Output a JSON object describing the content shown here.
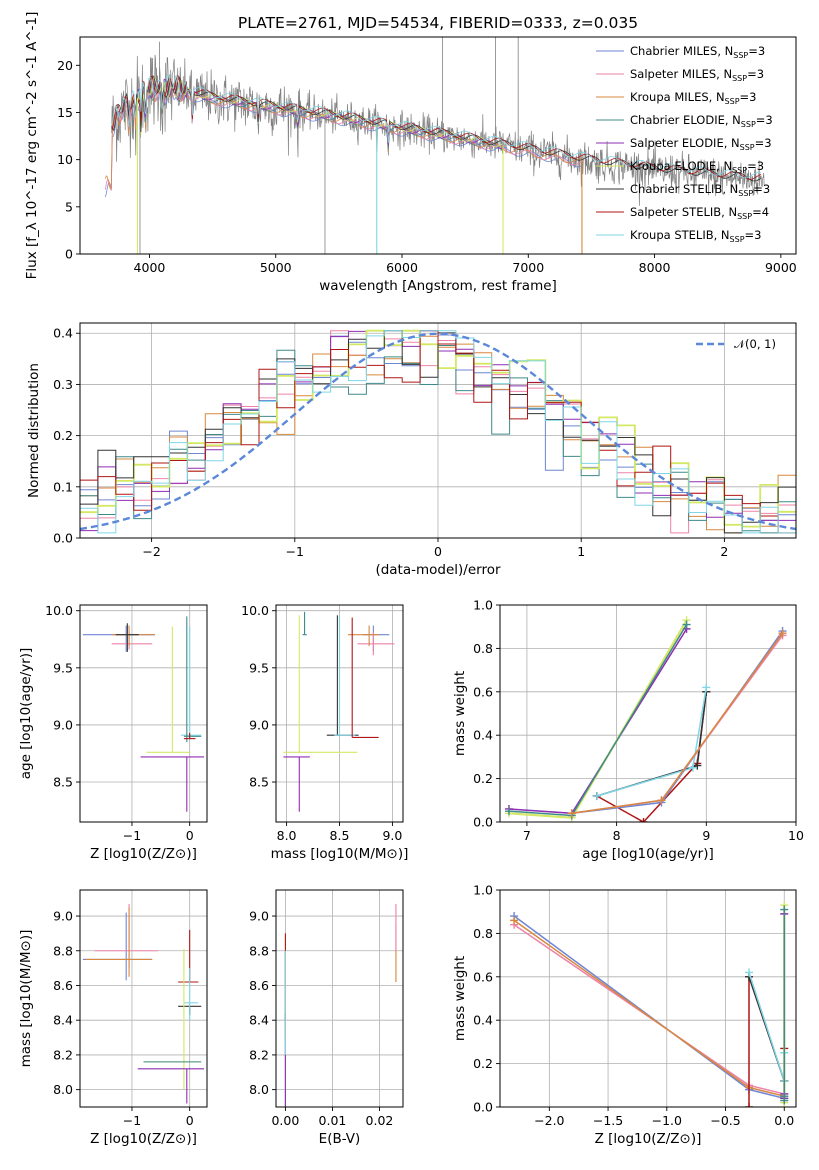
{
  "title": "PLATE=2761, MJD=54534, FIBERID=0333, z=0.035",
  "colors": {
    "Chabrier MILES": "#6f86d4",
    "Salpeter MILES": "#ee82a8",
    "Kroupa MILES": "#d8873f",
    "Chabrier ELODIE": "#3f8a8a",
    "Salpeter ELODIE": "#8f2fb3",
    "Kroupa ELODIE": "#d4e866",
    "Chabrier STELIB": "#333333",
    "Salpeter STELIB": "#b01515",
    "Kroupa STELIB": "#7fd6e6",
    "data": "#808080",
    "gaussian": "#5b88d8"
  },
  "chart_data": [
    {
      "id": "spectrum",
      "type": "line",
      "xlabel": "wavelength [Angstrom, rest frame]",
      "ylabel": "Flux [f_λ 10^-17 erg cm^-2 s^-1 A^-1]",
      "xlim": [
        3450,
        9120
      ],
      "ylim": [
        0,
        23
      ],
      "xticks": [
        4000,
        5000,
        6000,
        7000,
        8000,
        9000
      ],
      "yticks": [
        0,
        5,
        10,
        15,
        20
      ],
      "grid": false,
      "legend_position": "upper right",
      "legend": [
        {
          "label": "Chabrier MILES",
          "nssp": "3"
        },
        {
          "label": "Salpeter MILES",
          "nssp": "3"
        },
        {
          "label": "Kroupa MILES",
          "nssp": "3"
        },
        {
          "label": "Chabrier ELODIE",
          "nssp": "3"
        },
        {
          "label": "Salpeter ELODIE",
          "nssp": "3"
        },
        {
          "label": "Kroupa ELODIE",
          "nssp": "3"
        },
        {
          "label": "Chabrier STELIB",
          "nssp": "3"
        },
        {
          "label": "Salpeter STELIB",
          "nssp": "4"
        },
        {
          "label": "Kroupa STELIB",
          "nssp": "3"
        }
      ],
      "continuum": [
        [
          3700,
          13.5
        ],
        [
          3800,
          15.5
        ],
        [
          3900,
          16.5
        ],
        [
          4000,
          17.5
        ],
        [
          4200,
          17.5
        ],
        [
          4500,
          16.5
        ],
        [
          5000,
          15.5
        ],
        [
          5500,
          14.5
        ],
        [
          6000,
          13.3
        ],
        [
          6500,
          12.2
        ],
        [
          7000,
          11.0
        ],
        [
          7500,
          9.8
        ],
        [
          8000,
          8.9
        ],
        [
          8500,
          8.2
        ],
        [
          9000,
          7.6
        ]
      ],
      "model_extent": {
        "MILES": [
          3650,
          7430
        ],
        "ELODIE": [
          3900,
          6800
        ],
        "STELIB": [
          3700,
          8850
        ]
      }
    },
    {
      "id": "residuals",
      "type": "step",
      "xlabel": "(data-model)/error",
      "ylabel": "Normed distribution",
      "xlim": [
        -2.5,
        2.5
      ],
      "ylim": [
        0,
        0.42
      ],
      "xticks": [
        -2,
        -1,
        0,
        1,
        2
      ],
      "yticks": [
        0.0,
        0.1,
        0.2,
        0.3,
        0.4
      ],
      "grid": true,
      "legend_position": "upper right",
      "legend": [
        {
          "label": "𝒩(0, 1)"
        }
      ],
      "bins": 40
    },
    {
      "id": "age_vs_Z",
      "type": "scatter",
      "xlabel": "Z [log10(Z/Z⊙)]",
      "ylabel": "age [log10(age/yr)]",
      "xlim": [
        -1.9,
        0.3
      ],
      "ylim": [
        8.15,
        10.05
      ],
      "xticks": [
        -1,
        0
      ],
      "yticks": [
        8.5,
        9.0,
        9.5,
        10.0
      ],
      "grid": true
    },
    {
      "id": "age_vs_mass",
      "type": "scatter",
      "xlabel": "mass [log10(M/M⊙)]",
      "ylabel": "",
      "xlim": [
        7.9,
        9.1
      ],
      "ylim": [
        8.15,
        10.05
      ],
      "xticks": [
        8.0,
        8.5,
        9.0
      ],
      "yticks": [
        8.5,
        9.0,
        9.5,
        10.0
      ],
      "grid": true
    },
    {
      "id": "weight_vs_age",
      "type": "line",
      "xlabel": "age [log10(age/yr)]",
      "ylabel": "mass weight",
      "xlim": [
        6.7,
        10.0
      ],
      "ylim": [
        0,
        1.0
      ],
      "xticks": [
        7,
        8,
        9,
        10
      ],
      "yticks": [
        0.0,
        0.2,
        0.4,
        0.6,
        0.8,
        1.0
      ],
      "grid": true
    },
    {
      "id": "mass_vs_Z",
      "type": "scatter",
      "xlabel": "Z [log10(Z/Z⊙)]",
      "ylabel": "mass [log10(M/M⊙)]",
      "xlim": [
        -1.9,
        0.3
      ],
      "ylim": [
        7.9,
        9.15
      ],
      "xticks": [
        -1,
        0
      ],
      "yticks": [
        8.0,
        8.2,
        8.4,
        8.6,
        8.8,
        9.0
      ],
      "grid": true
    },
    {
      "id": "mass_vs_ebv",
      "type": "scatter",
      "xlabel": "E(B-V)",
      "ylabel": "",
      "xlim": [
        -0.002,
        0.025
      ],
      "ylim": [
        7.9,
        9.15
      ],
      "xticks": [
        0.0,
        0.01,
        0.02
      ],
      "yticks": [
        8.0,
        8.2,
        8.4,
        8.6,
        8.8,
        9.0
      ],
      "grid": true
    },
    {
      "id": "weight_vs_Z",
      "type": "line",
      "xlabel": "Z [log10(Z/Z⊙)]",
      "ylabel": "mass weight",
      "xlim": [
        -2.42,
        0.1
      ],
      "ylim": [
        0,
        1.0
      ],
      "xticks": [
        -2.0,
        -1.5,
        -1.0,
        -0.5,
        0.0
      ],
      "yticks": [
        0.0,
        0.2,
        0.4,
        0.6,
        0.8,
        1.0
      ],
      "grid": true
    }
  ]
}
